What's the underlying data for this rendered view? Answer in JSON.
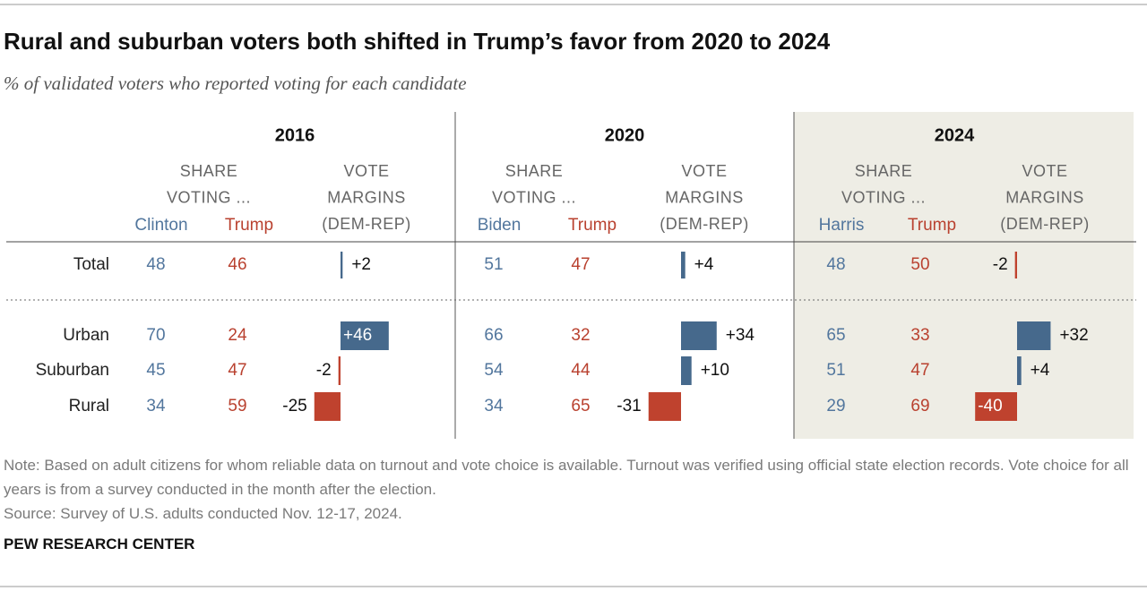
{
  "title": "Rural and suburban voters both shifted in Trump’s favor from 2020 to 2024",
  "subtitle": "% of validated voters who reported voting for each candidate",
  "rows": [
    "Total",
    "Urban",
    "Suburban",
    "Rural"
  ],
  "colors": {
    "dem_text": "#52769d",
    "rep_text": "#b9412f",
    "dem_bar": "#46698c",
    "rep_bar": "#bf422e",
    "highlight_panel": "#eeede5"
  },
  "panels": [
    {
      "year": "2016",
      "share_header": [
        "SHARE",
        "VOTING ..."
      ],
      "margin_header": [
        "VOTE",
        "MARGINS",
        "(DEM-REP)"
      ],
      "dem_name": "Clinton",
      "rep_name": "Trump",
      "dem": [
        48,
        70,
        45,
        34
      ],
      "rep": [
        46,
        24,
        47,
        59
      ],
      "margins": [
        2,
        46,
        -2,
        -25
      ],
      "margin_labels": [
        "+2",
        "+46",
        "-2",
        "-25"
      ],
      "highlight": false
    },
    {
      "year": "2020",
      "share_header": [
        "SHARE",
        "VOTING ..."
      ],
      "margin_header": [
        "VOTE",
        "MARGINS",
        "(DEM-REP)"
      ],
      "dem_name": "Biden",
      "rep_name": "Trump",
      "dem": [
        51,
        66,
        54,
        34
      ],
      "rep": [
        47,
        32,
        44,
        65
      ],
      "margins": [
        4,
        34,
        10,
        -31
      ],
      "margin_labels": [
        "+4",
        "+34",
        "+10",
        "-31"
      ],
      "highlight": false
    },
    {
      "year": "2024",
      "share_header": [
        "SHARE",
        "VOTING ..."
      ],
      "margin_header": [
        "VOTE",
        "MARGINS",
        "(DEM-REP)"
      ],
      "dem_name": "Harris",
      "rep_name": "Trump",
      "dem": [
        48,
        65,
        51,
        29
      ],
      "rep": [
        50,
        33,
        47,
        69
      ],
      "margins": [
        -2,
        32,
        4,
        -40
      ],
      "margin_labels": [
        "-2",
        "+32",
        "+4",
        "-40"
      ],
      "highlight": true
    }
  ],
  "note": "Note: Based on adult citizens for whom reliable data on turnout and vote choice is available. Turnout was verified using official state election records. Vote choice for all years is from a survey conducted in the month after the election.",
  "source": "Source: Survey of U.S. adults conducted Nov. 12-17, 2024.",
  "brand": "PEW RESEARCH CENTER"
}
